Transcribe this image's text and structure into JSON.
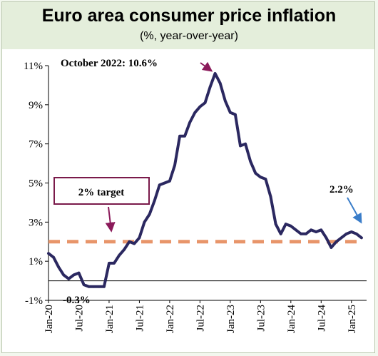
{
  "chart_data": {
    "type": "line",
    "title": "Euro area consumer price inflation",
    "subtitle": "(%, year-over-year)",
    "xlabel": "",
    "ylabel": "",
    "ylim": [
      -1,
      11
    ],
    "y_ticks": [
      -1,
      1,
      3,
      5,
      7,
      9,
      11
    ],
    "y_tick_labels": [
      "-1%",
      "1%",
      "3%",
      "5%",
      "7%",
      "9%",
      "11%"
    ],
    "x_ticks": [
      "2020-01",
      "2020-07",
      "2021-01",
      "2021-07",
      "2022-01",
      "2022-07",
      "2023-01",
      "2023-07",
      "2024-01",
      "2024-07",
      "2025-01"
    ],
    "x_tick_labels": [
      "Jan-20",
      "Jul-20",
      "Jan-21",
      "Jul-21",
      "Jan-22",
      "Jul-22",
      "Jan-23",
      "Jul-23",
      "Jan-24",
      "Jul-24",
      "Jan-25"
    ],
    "grid": false,
    "series": [
      {
        "name": "",
        "color": "#2b2860",
        "x": [
          "2020-01",
          "2020-02",
          "2020-03",
          "2020-04",
          "2020-05",
          "2020-06",
          "2020-07",
          "2020-08",
          "2020-09",
          "2020-10",
          "2020-11",
          "2020-12",
          "2021-01",
          "2021-02",
          "2021-03",
          "2021-04",
          "2021-05",
          "2021-06",
          "2021-07",
          "2021-08",
          "2021-09",
          "2021-10",
          "2021-11",
          "2021-12",
          "2022-01",
          "2022-02",
          "2022-03",
          "2022-04",
          "2022-05",
          "2022-06",
          "2022-07",
          "2022-08",
          "2022-09",
          "2022-10",
          "2022-11",
          "2022-12",
          "2023-01",
          "2023-02",
          "2023-03",
          "2023-04",
          "2023-05",
          "2023-06",
          "2023-07",
          "2023-08",
          "2023-09",
          "2023-10",
          "2023-11",
          "2023-12",
          "2024-01",
          "2024-02",
          "2024-03",
          "2024-04",
          "2024-05",
          "2024-06",
          "2024-07",
          "2024-08",
          "2024-09",
          "2024-10",
          "2024-11",
          "2024-12",
          "2025-01",
          "2025-02",
          "2025-03"
        ],
        "values": [
          1.4,
          1.2,
          0.7,
          0.3,
          0.1,
          0.3,
          0.4,
          -0.2,
          -0.3,
          -0.3,
          -0.3,
          -0.3,
          0.9,
          0.9,
          1.3,
          1.6,
          2.0,
          1.9,
          2.2,
          3.0,
          3.4,
          4.1,
          4.9,
          5.0,
          5.1,
          5.9,
          7.4,
          7.4,
          8.1,
          8.6,
          8.9,
          9.1,
          9.9,
          10.6,
          10.1,
          9.2,
          8.6,
          8.5,
          6.9,
          7.0,
          6.1,
          5.5,
          5.3,
          5.2,
          4.3,
          2.9,
          2.4,
          2.9,
          2.8,
          2.6,
          2.4,
          2.4,
          2.6,
          2.5,
          2.6,
          2.2,
          1.7,
          2.0,
          2.2,
          2.4,
          2.5,
          2.4,
          2.2
        ]
      }
    ],
    "reference_line": {
      "value": 2,
      "label": "2% target",
      "color": "#e8956a"
    },
    "annotations": {
      "peak": "October 2022: 10.6%",
      "trough": "-0.3%",
      "latest": "2.2%",
      "arrow_peak_color": "#8b1a5a",
      "arrow_target_color": "#8b1a5a",
      "arrow_latest_color": "#3a7dc9",
      "target_box_border": "#7a1a4a"
    },
    "line_color": "#2b2860"
  }
}
